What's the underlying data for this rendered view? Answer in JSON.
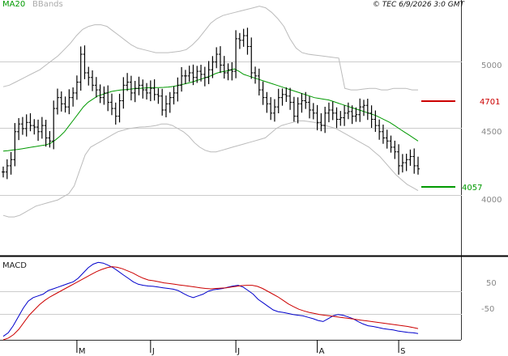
{
  "legend": {
    "ma20": "MA20",
    "bbands": "BBands"
  },
  "copyright": "© TEC 6/9/2026 3:0 GMT",
  "macd_title": "MACD",
  "levels": {
    "upper": "4701",
    "lower": "4057"
  },
  "colors": {
    "price": "#000000",
    "ma20": "#009900",
    "bbands": "#bbbbbb",
    "resistance": "#cc0000",
    "support": "#009900",
    "macd": "#0000cc",
    "signal": "#cc0000",
    "grid": "#cccccc"
  },
  "chart_data": [
    {
      "type": "line",
      "title": "",
      "xlabel": "",
      "ylabel": "",
      "yticks": [
        "5000",
        "4500",
        "4000"
      ],
      "xticks": [
        {
          "label": "M",
          "index": 19
        },
        {
          "label": "J",
          "index": 38
        },
        {
          "label": "J",
          "index": 60
        },
        {
          "label": "A",
          "index": 81
        },
        {
          "label": "S",
          "index": 102
        }
      ],
      "ylim": [
        3800,
        5450
      ],
      "series": [
        {
          "name": "MA20",
          "values": [
            4475,
            4478,
            4482,
            4485,
            4490,
            4495,
            4500,
            4505,
            4510,
            4515,
            4525,
            4545,
            4570,
            4600,
            4640,
            4680,
            4720,
            4760,
            4790,
            4810,
            4830,
            4840,
            4850,
            4860,
            4865,
            4870,
            4872,
            4875,
            4878,
            4880,
            4882,
            4884,
            4885,
            4885,
            4886,
            4888,
            4892,
            4898,
            4905,
            4912,
            4920,
            4930,
            4940,
            4950,
            4960,
            4975,
            4985,
            4990,
            4995,
            5005,
            4990,
            4970,
            4960,
            4950,
            4940,
            4930,
            4920,
            4910,
            4900,
            4890,
            4880,
            4870,
            4860,
            4850,
            4840,
            4830,
            4820,
            4815,
            4810,
            4805,
            4795,
            4785,
            4775,
            4765,
            4755,
            4745,
            4735,
            4725,
            4715,
            4705,
            4690,
            4675,
            4660,
            4640,
            4620,
            4600,
            4580,
            4560,
            4540
          ]
        },
        {
          "name": "BBands upper",
          "values": [
            4890,
            4900,
            4920,
            4940,
            4960,
            4980,
            5000,
            5030,
            5060,
            5090,
            5130,
            5170,
            5220,
            5260,
            5280,
            5290,
            5290,
            5280,
            5250,
            5220,
            5190,
            5160,
            5140,
            5130,
            5120,
            5110,
            5110,
            5110,
            5115,
            5120,
            5130,
            5160,
            5200,
            5250,
            5300,
            5330,
            5350,
            5360,
            5370,
            5380,
            5390,
            5400,
            5410,
            5400,
            5370,
            5330,
            5280,
            5200,
            5140,
            5110,
            5100,
            5095,
            5090,
            5085,
            5080,
            5075,
            4880,
            4870,
            4870,
            4875,
            4880,
            4880,
            4870,
            4870,
            4880,
            4880,
            4880,
            4870,
            4870
          ]
        },
        {
          "name": "BBands lower",
          "values": [
            4060,
            4050,
            4050,
            4060,
            4080,
            4100,
            4120,
            4130,
            4140,
            4150,
            4160,
            4180,
            4200,
            4250,
            4350,
            4450,
            4500,
            4520,
            4540,
            4560,
            4580,
            4600,
            4610,
            4620,
            4625,
            4630,
            4632,
            4635,
            4640,
            4650,
            4650,
            4640,
            4620,
            4600,
            4570,
            4530,
            4500,
            4480,
            4470,
            4470,
            4480,
            4490,
            4500,
            4510,
            4520,
            4530,
            4540,
            4550,
            4560,
            4590,
            4620,
            4640,
            4650,
            4660,
            4670,
            4670,
            4665,
            4660,
            4650,
            4640,
            4630,
            4620,
            4600,
            4580,
            4560,
            4540,
            4520,
            4500,
            4470,
            4440,
            4400,
            4360,
            4320,
            4290,
            4260,
            4240,
            4220
          ]
        },
        {
          "name": "Price",
          "values": [
            4340,
            4380,
            4420,
            4600,
            4650,
            4620,
            4660,
            4640,
            4630,
            4600,
            4640,
            4560,
            4540,
            4750,
            4820,
            4780,
            4760,
            4820,
            4850,
            4920,
            5100,
            4980,
            4950,
            4900,
            4870,
            4820,
            4850,
            4790,
            4750,
            4700,
            4800,
            4900,
            4920,
            4850,
            4880,
            4900,
            4870,
            4850,
            4880,
            4840,
            4830,
            4740,
            4780,
            4820,
            4850,
            4900,
            4960,
            4960,
            4980,
            4950,
            4990,
            4970,
            4950,
            5000,
            5050,
            5100,
            5030,
            4980,
            5000,
            4990,
            5200,
            5190,
            5220,
            5150,
            4980,
            4960,
            4870,
            4820,
            4780,
            4720,
            4760,
            4820,
            4840,
            4830,
            4790,
            4700,
            4780,
            4800,
            4790,
            4740,
            4720,
            4660,
            4640,
            4720,
            4740,
            4720,
            4680,
            4690,
            4720,
            4730,
            4700,
            4710,
            4760,
            4770,
            4720,
            4680,
            4640,
            4600,
            4560,
            4540,
            4500,
            4470,
            4380,
            4400,
            4420,
            4440,
            4380,
            4360
          ]
        }
      ]
    },
    {
      "type": "line",
      "title": "MACD",
      "yticks": [
        "50",
        "-50"
      ],
      "ylim": [
        -120,
        110
      ],
      "series": [
        {
          "name": "MACD",
          "values": [
            -110,
            -100,
            -80,
            -55,
            -30,
            -10,
            0,
            5,
            10,
            20,
            25,
            30,
            35,
            40,
            45,
            55,
            70,
            85,
            95,
            100,
            98,
            92,
            85,
            75,
            65,
            55,
            45,
            38,
            35,
            33,
            32,
            30,
            28,
            26,
            24,
            20,
            12,
            5,
            0,
            5,
            10,
            18,
            22,
            24,
            26,
            30,
            33,
            35,
            30,
            20,
            10,
            -5,
            -15,
            -25,
            -35,
            -40,
            -42,
            -45,
            -48,
            -50,
            -52,
            -56,
            -60,
            -65,
            -68,
            -60,
            -52,
            -48,
            -50,
            -55,
            -60,
            -68,
            -75,
            -80,
            -82,
            -85,
            -88,
            -90,
            -92,
            -95,
            -97,
            -99,
            -100,
            -102
          ]
        },
        {
          "name": "Signal",
          "values": [
            -120,
            -115,
            -105,
            -90,
            -70,
            -50,
            -35,
            -20,
            -8,
            2,
            10,
            18,
            26,
            34,
            42,
            50,
            58,
            66,
            74,
            80,
            85,
            88,
            86,
            82,
            76,
            70,
            62,
            55,
            50,
            48,
            45,
            42,
            40,
            38,
            36,
            34,
            32,
            30,
            28,
            26,
            25,
            26,
            27,
            28,
            30,
            32,
            34,
            35,
            35,
            32,
            26,
            18,
            10,
            2,
            -8,
            -18,
            -26,
            -33,
            -38,
            -42,
            -45,
            -48,
            -50,
            -52,
            -54,
            -56,
            -58,
            -60,
            -62,
            -64,
            -66,
            -68,
            -70,
            -72,
            -74,
            -76,
            -78,
            -80,
            -82,
            -85,
            -88
          ]
        }
      ]
    }
  ]
}
